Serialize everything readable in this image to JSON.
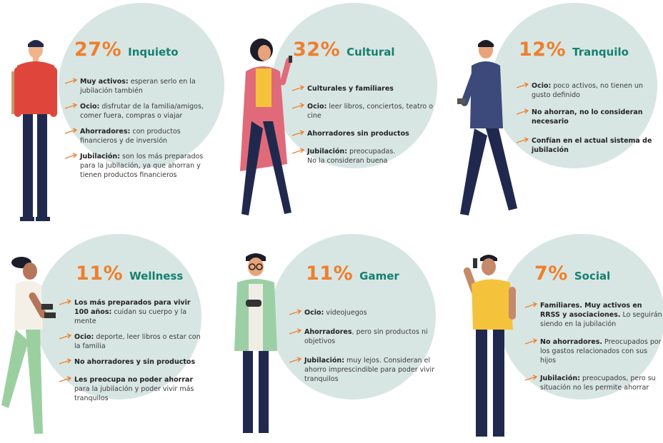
{
  "profiles": [
    {
      "pct": "27%",
      "name": "Inquieto",
      "items": [
        {
          "bold": "Muy activos:",
          "text": " esperan serlo en la jubilación también"
        },
        {
          "bold": "Ocio:",
          "text": " disfrutar de la familia/amigos, comer fuera, compras o viajar"
        },
        {
          "bold": "Ahorradores:",
          "text": " con productos financieros y de inversión"
        },
        {
          "bold": "Jubilación:",
          "text": " son los más preparados para la jubilación, ya que ahorran y tienen productos financieros"
        }
      ]
    },
    {
      "pct": "32%",
      "name": "Cultural",
      "items": [
        {
          "bold": "Culturales y familiares",
          "text": ""
        },
        {
          "bold": "Ocio:",
          "text": " leer libros, conciertos, teatro o cine"
        },
        {
          "bold": "Ahorradores sin productos",
          "text": ""
        },
        {
          "bold": "Jubilación:",
          "text": " preocupadas. No la consideran buena"
        }
      ]
    },
    {
      "pct": "12%",
      "name": "Tranquilo",
      "items": [
        {
          "bold": "Ocio:",
          "text": " poco activos, no tienen un gusto definido"
        },
        {
          "bold": "No ahorran, no lo consideran necesario",
          "text": ""
        },
        {
          "bold": "Confían en el actual sistema de jubilación",
          "text": ""
        }
      ]
    },
    {
      "pct": "11%",
      "name": "Wellness",
      "items": [
        {
          "bold": "Los más preparados para vivir 100 años:",
          "text": " cuidan su cuerpo y la mente"
        },
        {
          "bold": "Ocio:",
          "text": " deporte, leer libros o estar con la familia"
        },
        {
          "bold": "No ahorradores y sin productos",
          "text": ""
        },
        {
          "bold": "Les preocupa no poder ahorrar",
          "text": " para la jubilación y poder vivir más tranquilos"
        }
      ]
    },
    {
      "pct": "11%",
      "name": "Gamer",
      "items": [
        {
          "bold": "Ocio:",
          "text": " videojuegos"
        },
        {
          "bold": "Ahorradores",
          "text": ", pero sin productos ni objetivos"
        },
        {
          "bold": "Jubilación:",
          "text": " muy lejos. Consideran el ahorro imprescindible para poder vivir tranquilos"
        }
      ]
    },
    {
      "pct": "7%",
      "name": "Social",
      "items": [
        {
          "bold": "Familiares. Muy activos en RRSS y asociaciones.",
          "text": " Lo seguirán siendo en la jubilación"
        },
        {
          "bold": "No ahorradores.",
          "text": " Preocupados por los gastos relacionados con sus hijos"
        },
        {
          "bold": "Jubilación:",
          "text": " preocupados, pero su situación no les permite ahorrar"
        }
      ]
    }
  ],
  "colors": {
    "accent_orange": "#ee7f2d",
    "label_teal": "#14806f",
    "circle_bg": "#d8e6e3"
  }
}
